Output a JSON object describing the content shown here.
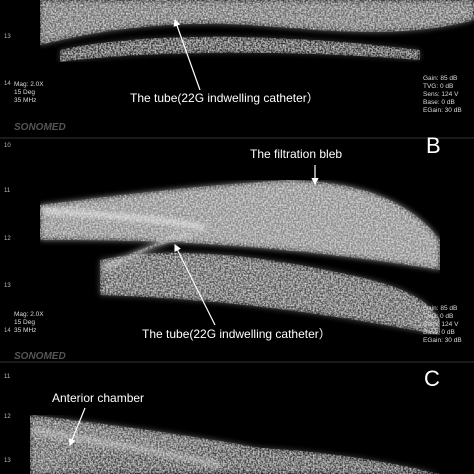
{
  "panels": [
    {
      "annotations": [
        "The tube(22G indwelling catheter）"
      ],
      "depth_ticks": [
        "13",
        "14"
      ],
      "settings_left": [
        "Mag: 2.0X",
        "15 Deg",
        "35 MHz"
      ],
      "settings_right": [
        "Gain: 85 dB",
        "TVG: 0 dB",
        "Sens: 124 V",
        "Base: 0 dB",
        "EGain: 30 dB"
      ],
      "brand": "SONOMED"
    },
    {
      "letter": "B",
      "annotations": [
        "The filtration bleb",
        "The tube(22G indwelling catheter）"
      ],
      "depth_ticks": [
        "10",
        "11",
        "12",
        "13",
        "14"
      ],
      "settings_left": [
        "Mag: 2.0X",
        "15 Deg",
        "35 MHz"
      ],
      "settings_right": [
        "Gain: 85 dB",
        "TVG: 0 dB",
        "Sens: 124 V",
        "Base: 0 dB",
        "EGain: 30 dB"
      ],
      "brand": "SONOMED"
    },
    {
      "letter": "C",
      "annotations": [
        "Anterior chamber"
      ],
      "depth_ticks": [
        "11",
        "12",
        "13"
      ]
    }
  ]
}
